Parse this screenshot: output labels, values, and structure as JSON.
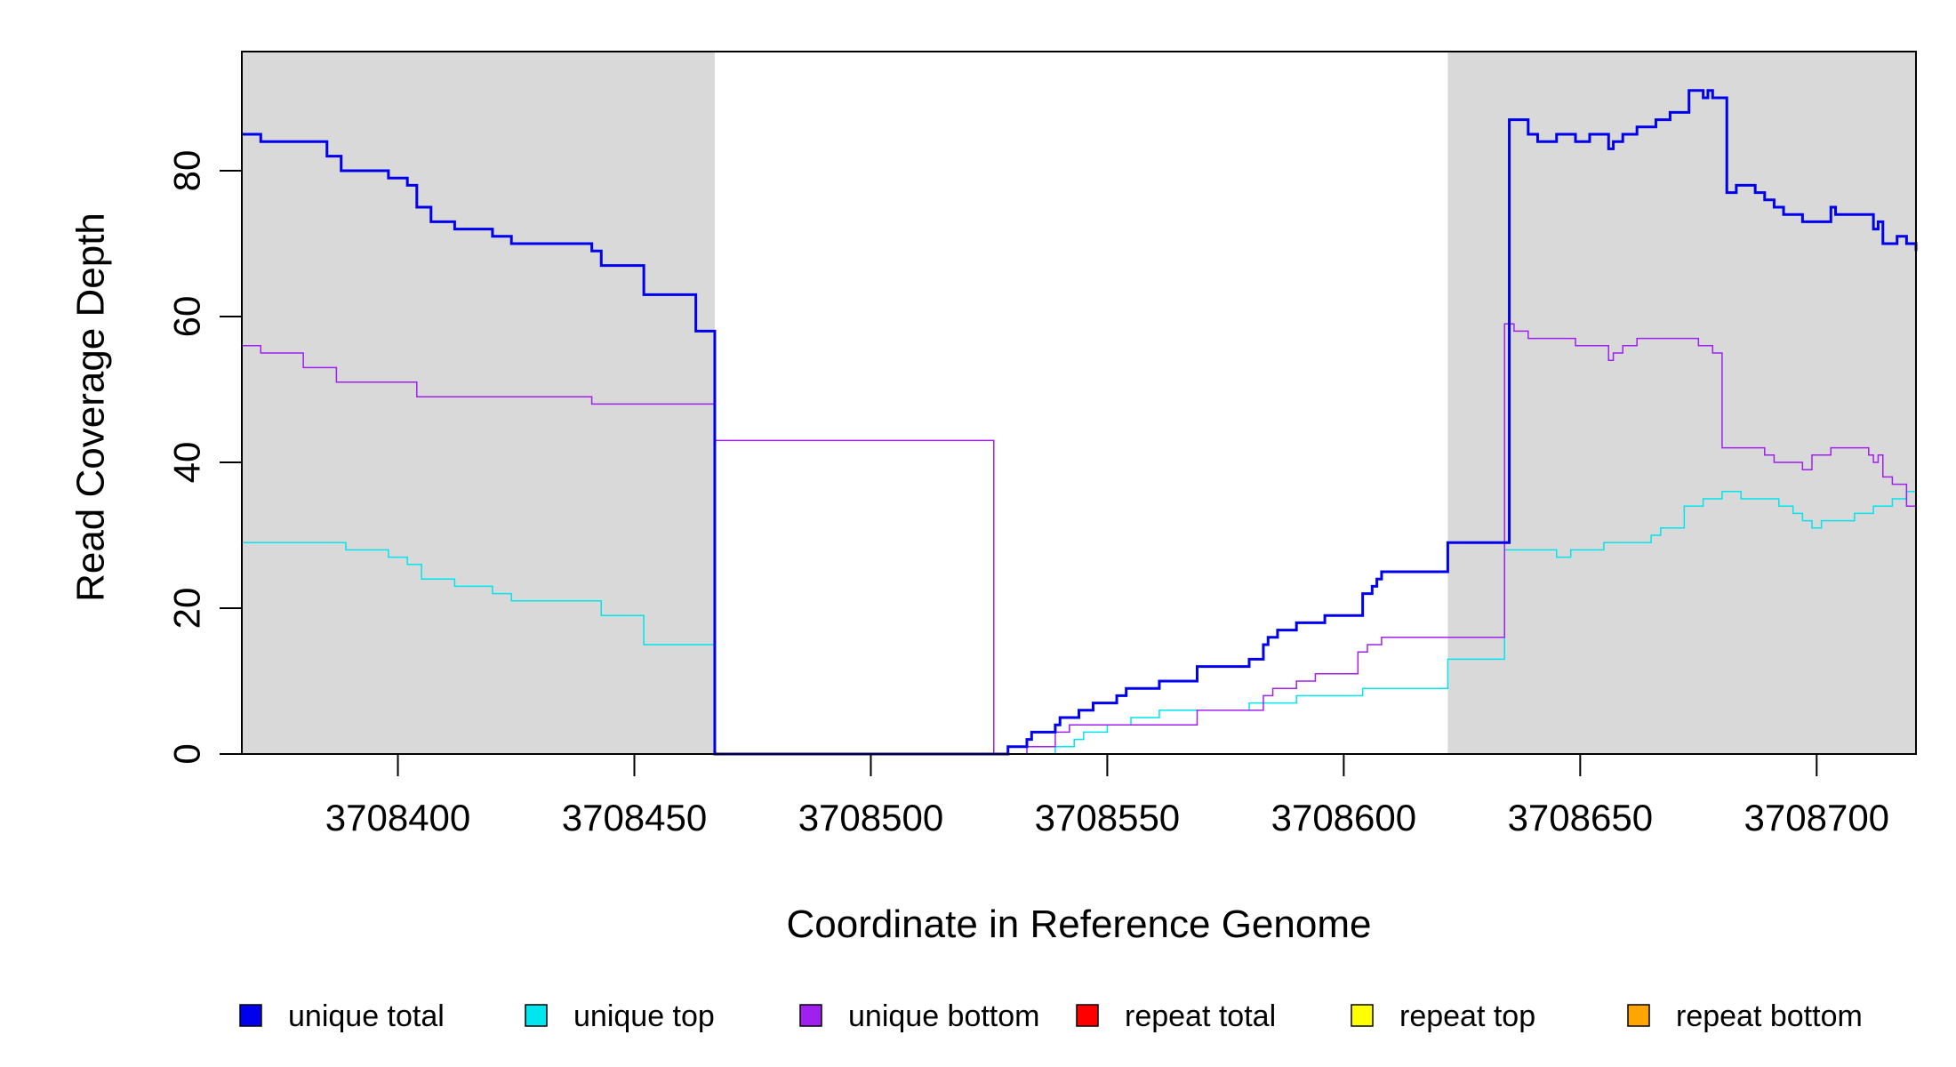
{
  "chart_data": {
    "type": "line",
    "title": "",
    "xlabel": "Coordinate in Reference Genome",
    "ylabel": "Read Coverage Depth",
    "xlim": [
      3708367,
      3708721
    ],
    "ylim": [
      0,
      96
    ],
    "x_ticks": [
      3708400,
      3708450,
      3708500,
      3708550,
      3708600,
      3708650,
      3708700
    ],
    "x_tick_labels": [
      "3708400",
      "3708450",
      "3708500",
      "3708550",
      "3708600",
      "3708650",
      "3708700"
    ],
    "y_ticks": [
      0,
      20,
      40,
      60,
      80
    ],
    "y_tick_labels": [
      "0",
      "20",
      "40",
      "60",
      "80"
    ],
    "shaded_regions": [
      {
        "from": 3708367,
        "to": 3708467,
        "color": "#d9d9d9"
      },
      {
        "from": 3708622,
        "to": 3708721,
        "color": "#d9d9d9"
      }
    ],
    "legend_position": "bottom",
    "series": [
      {
        "name": "unique total",
        "color": "#0000ee",
        "width": 3,
        "x": [
          3708367,
          3708371,
          3708380,
          3708385,
          3708388,
          3708398,
          3708402,
          3708404,
          3708407,
          3708412,
          3708420,
          3708424,
          3708439,
          3708441,
          3708443,
          3708449,
          3708452,
          3708457,
          3708463,
          3708467,
          3708526,
          3708529,
          3708533,
          3708534,
          3708535,
          3708539,
          3708540,
          3708542,
          3708544,
          3708547,
          3708552,
          3708554,
          3708555,
          3708561,
          3708569,
          3708580,
          3708583,
          3708584,
          3708586,
          3708590,
          3708596,
          3708600,
          3708604,
          3708606,
          3708607,
          3708608,
          3708610,
          3708622,
          3708634,
          3708635,
          3708639,
          3708641,
          3708645,
          3708649,
          3708652,
          3708656,
          3708657,
          3708659,
          3708662,
          3708666,
          3708669,
          3708673,
          3708676,
          3708677,
          3708678,
          3708680,
          3708681,
          3708683,
          3708687,
          3708689,
          3708691,
          3708693,
          3708697,
          3708700,
          3708703,
          3708704,
          3708712,
          3708713,
          3708714,
          3708717,
          3708719,
          3708721
        ],
        "y": [
          85,
          84,
          84,
          82,
          80,
          79,
          78,
          75,
          73,
          72,
          71,
          70,
          70,
          69,
          67,
          67,
          63,
          63,
          58,
          0,
          0,
          1,
          2,
          3,
          3,
          4,
          5,
          5,
          6,
          7,
          8,
          9,
          9,
          10,
          12,
          13,
          15,
          16,
          17,
          18,
          19,
          19,
          22,
          23,
          24,
          25,
          25,
          29,
          29,
          87,
          85,
          84,
          85,
          84,
          85,
          83,
          84,
          85,
          86,
          87,
          88,
          91,
          90,
          91,
          90,
          90,
          77,
          78,
          77,
          76,
          75,
          74,
          73,
          73,
          75,
          74,
          72,
          73,
          70,
          71,
          70,
          69
        ],
        "step_ends": {
          "x": 3708721,
          "y": 70
        }
      },
      {
        "name": "unique top",
        "color": "#00e5ee",
        "width": 1.5,
        "x": [
          3708367,
          3708389,
          3708398,
          3708402,
          3708405,
          3708412,
          3708420,
          3708424,
          3708443,
          3708452,
          3708467,
          3708535,
          3708539,
          3708543,
          3708545,
          3708547,
          3708550,
          3708555,
          3708558,
          3708561,
          3708569,
          3708580,
          3708583,
          3708586,
          3708590,
          3708596,
          3708600,
          3708604,
          3708608,
          3708622,
          3708634,
          3708645,
          3708648,
          3708650,
          3708655,
          3708663,
          3708665,
          3708667,
          3708672,
          3708676,
          3708680,
          3708684,
          3708688,
          3708692,
          3708695,
          3708697,
          3708699,
          3708701,
          3708703,
          3708708,
          3708712,
          3708716,
          3708719
        ],
        "y": [
          29,
          28,
          27,
          26,
          24,
          23,
          22,
          21,
          19,
          15,
          0,
          0,
          1,
          2,
          3,
          3,
          4,
          5,
          5,
          6,
          6,
          7,
          7,
          7,
          8,
          8,
          8,
          9,
          9,
          13,
          28,
          27,
          28,
          28,
          29,
          29,
          30,
          31,
          34,
          35,
          36,
          35,
          35,
          34,
          33,
          32,
          31,
          32,
          32,
          33,
          34,
          35,
          36
        ],
        "step_ends": {
          "x": 3708721,
          "y": 36
        }
      },
      {
        "name": "unique bottom",
        "color": "#a020f0",
        "width": 1.5,
        "x": [
          3708367,
          3708371,
          3708380,
          3708387,
          3708404,
          3708439,
          3708441,
          3708463,
          3708467,
          3708526,
          3708533,
          3708539,
          3708542,
          3708547,
          3708569,
          3708580,
          3708583,
          3708585,
          3708590,
          3708594,
          3708600,
          3708603,
          3708605,
          3708606,
          3708608,
          3708622,
          3708634,
          3708636,
          3708639,
          3708645,
          3708649,
          3708652,
          3708656,
          3708657,
          3708659,
          3708662,
          3708672,
          3708675,
          3708678,
          3708680,
          3708687,
          3708689,
          3708691,
          3708697,
          3708699,
          3708703,
          3708711,
          3708712,
          3708713,
          3708714,
          3708716,
          3708719
        ],
        "y": [
          56,
          55,
          53,
          51,
          49,
          49,
          48,
          48,
          43,
          0,
          1,
          3,
          4,
          4,
          6,
          6,
          8,
          9,
          10,
          11,
          11,
          14,
          15,
          15,
          16,
          16,
          59,
          58,
          57,
          57,
          56,
          56,
          54,
          55,
          56,
          57,
          57,
          56,
          55,
          42,
          42,
          41,
          40,
          39,
          41,
          42,
          41,
          40,
          41,
          38,
          37,
          34
        ],
        "step_ends": {
          "x": 3708721,
          "y": 34
        }
      },
      {
        "name": "repeat total",
        "color": "#ff0000",
        "width": 1.5,
        "x": [
          3708367,
          3708721
        ],
        "y": [
          0,
          0
        ]
      },
      {
        "name": "repeat top",
        "color": "#ffff00",
        "width": 1.5,
        "x": [
          3708367,
          3708721
        ],
        "y": [
          0,
          0
        ]
      },
      {
        "name": "repeat bottom",
        "color": "#ffa500",
        "width": 2,
        "x": [
          3708367,
          3708721
        ],
        "y": [
          0,
          0
        ]
      }
    ]
  }
}
